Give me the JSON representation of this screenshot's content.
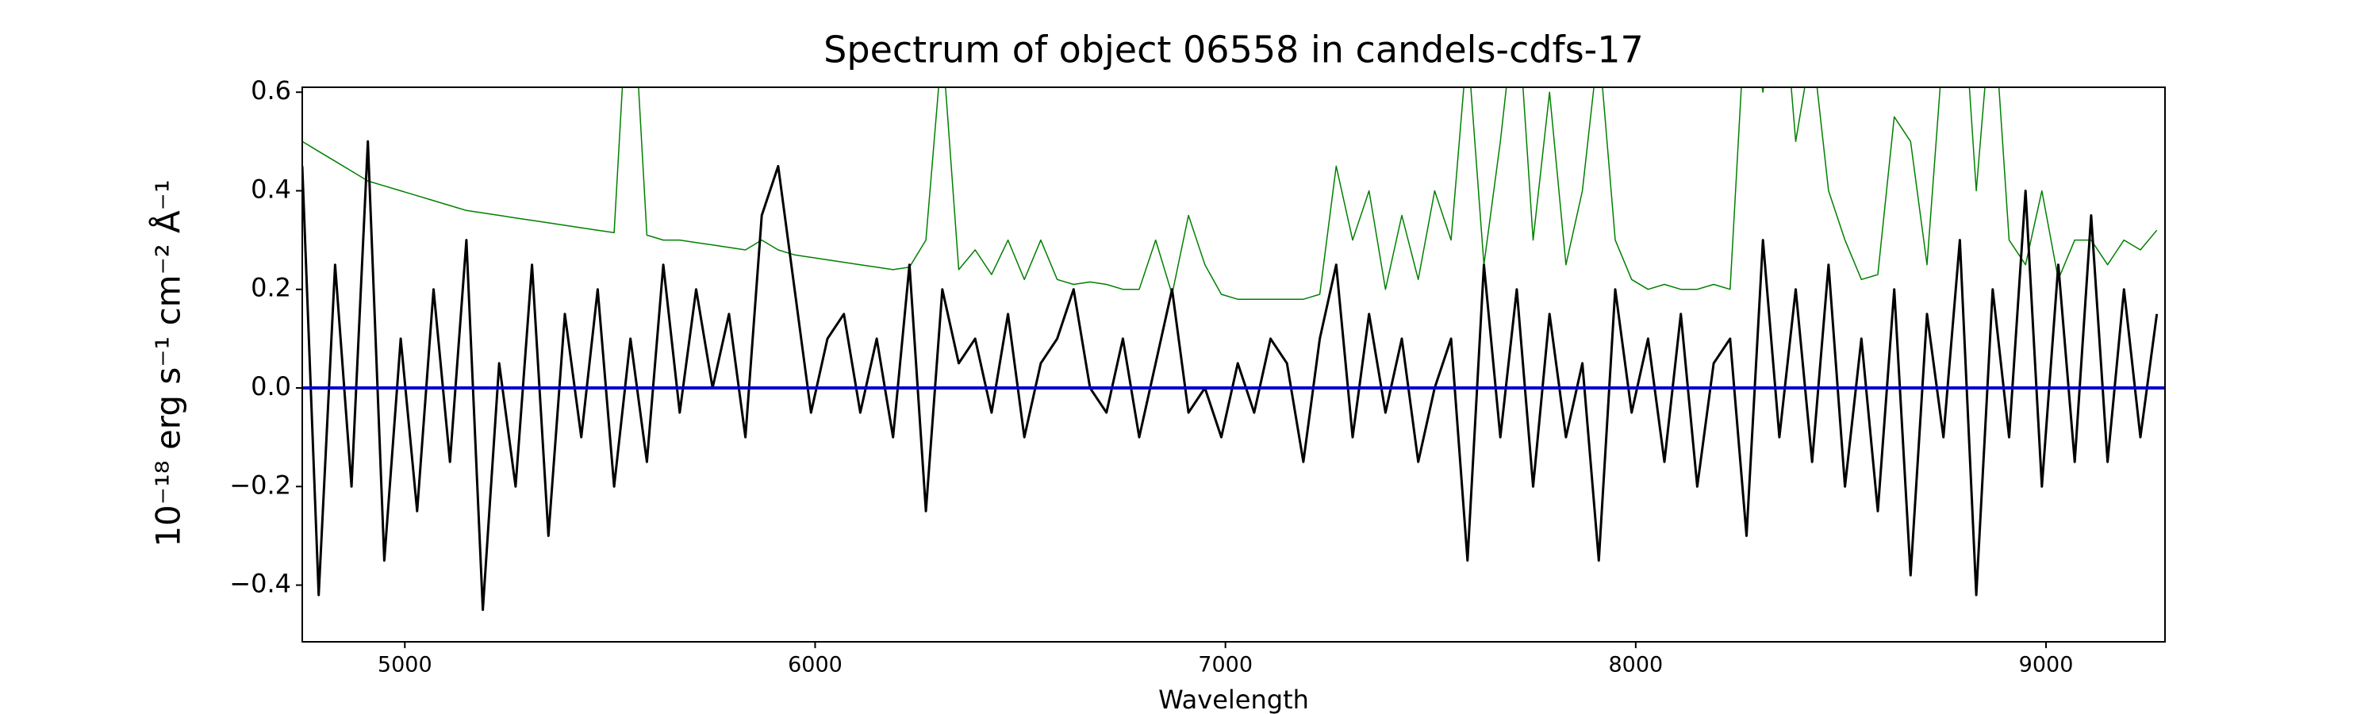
{
  "chart_data": {
    "type": "line",
    "title": "Spectrum of object 06558 in candels-cdfs-17",
    "x_label": "Wavelength",
    "y_label": "10⁻¹⁸ erg s⁻¹ cm⁻² Å⁻¹",
    "xlim": [
      4750,
      9290
    ],
    "ylim": [
      -0.515,
      0.61
    ],
    "xticks": [
      5000,
      6000,
      7000,
      8000,
      9000
    ],
    "yticks": [
      {
        "value": -0.4,
        "label": "−0.4"
      },
      {
        "value": -0.2,
        "label": "−0.2"
      },
      {
        "value": 0,
        "label": "0.0"
      },
      0.2,
      0.4,
      0.6
    ],
    "x": [
      4750,
      4790,
      4830,
      4870,
      4910,
      4950,
      4990,
      5030,
      5070,
      5110,
      5150,
      5190,
      5230,
      5270,
      5310,
      5350,
      5390,
      5430,
      5470,
      5510,
      5550,
      5590,
      5630,
      5670,
      5710,
      5750,
      5790,
      5830,
      5870,
      5910,
      5950,
      5990,
      6030,
      6070,
      6110,
      6150,
      6190,
      6230,
      6270,
      6310,
      6350,
      6390,
      6430,
      6470,
      6510,
      6550,
      6590,
      6630,
      6670,
      6710,
      6750,
      6790,
      6830,
      6870,
      6910,
      6950,
      6990,
      7030,
      7070,
      7110,
      7150,
      7190,
      7230,
      7270,
      7310,
      7350,
      7390,
      7430,
      7470,
      7510,
      7550,
      7590,
      7630,
      7670,
      7710,
      7750,
      7790,
      7830,
      7870,
      7910,
      7950,
      7990,
      8030,
      8070,
      8110,
      8150,
      8190,
      8230,
      8270,
      8310,
      8350,
      8390,
      8430,
      8470,
      8510,
      8550,
      8590,
      8630,
      8670,
      8710,
      8750,
      8790,
      8830,
      8870,
      8910,
      8950,
      8990,
      9030,
      9070,
      9110,
      9150,
      9190,
      9230,
      9270
    ],
    "series": [
      {
        "color": "#008000",
        "values": [
          0.5,
          0.48,
          0.46,
          0.44,
          0.42,
          0.41,
          0.4,
          0.39,
          0.38,
          0.37,
          0.36,
          0.355,
          0.35,
          0.345,
          0.34,
          0.335,
          0.33,
          0.325,
          0.32,
          0.315,
          0.9,
          0.31,
          0.3,
          0.3,
          0.295,
          0.29,
          0.285,
          0.28,
          0.3,
          0.28,
          0.27,
          0.265,
          0.26,
          0.255,
          0.25,
          0.245,
          0.24,
          0.245,
          0.3,
          0.7,
          0.24,
          0.28,
          0.23,
          0.3,
          0.22,
          0.3,
          0.22,
          0.21,
          0.215,
          0.21,
          0.2,
          0.2,
          0.3,
          0.19,
          0.35,
          0.25,
          0.19,
          0.18,
          0.18,
          0.18,
          0.18,
          0.18,
          0.19,
          0.45,
          0.3,
          0.4,
          0.2,
          0.35,
          0.22,
          0.4,
          0.3,
          0.7,
          0.25,
          0.5,
          0.8,
          0.3,
          0.6,
          0.25,
          0.4,
          0.7,
          0.3,
          0.22,
          0.2,
          0.21,
          0.2,
          0.2,
          0.21,
          0.2,
          0.8,
          0.6,
          0.9,
          0.5,
          0.7,
          0.4,
          0.3,
          0.22,
          0.23,
          0.55,
          0.5,
          0.25,
          0.7,
          0.9,
          0.4,
          0.8,
          0.3,
          0.25,
          0.4,
          0.22,
          0.3,
          0.3,
          0.25,
          0.3,
          0.28,
          0.32
        ]
      },
      {
        "color": "#000000",
        "values": [
          0.45,
          -0.42,
          0.25,
          -0.2,
          0.5,
          -0.35,
          0.1,
          -0.25,
          0.2,
          -0.15,
          0.3,
          -0.45,
          0.05,
          -0.2,
          0.25,
          -0.3,
          0.15,
          -0.1,
          0.2,
          -0.2,
          0.1,
          -0.15,
          0.25,
          -0.05,
          0.2,
          0.0,
          0.15,
          -0.1,
          0.35,
          0.45,
          0.2,
          -0.05,
          0.1,
          0.15,
          -0.05,
          0.1,
          -0.1,
          0.25,
          -0.25,
          0.2,
          0.05,
          0.1,
          -0.05,
          0.15,
          -0.1,
          0.05,
          0.1,
          0.2,
          0.0,
          -0.05,
          0.1,
          -0.1,
          0.05,
          0.2,
          -0.05,
          0.0,
          -0.1,
          0.05,
          -0.05,
          0.1,
          0.05,
          -0.15,
          0.1,
          0.25,
          -0.1,
          0.15,
          -0.05,
          0.1,
          -0.15,
          0.0,
          0.1,
          -0.35,
          0.25,
          -0.1,
          0.2,
          -0.2,
          0.15,
          -0.1,
          0.05,
          -0.35,
          0.2,
          -0.05,
          0.1,
          -0.15,
          0.15,
          -0.2,
          0.05,
          0.1,
          -0.3,
          0.3,
          -0.1,
          0.2,
          -0.15,
          0.25,
          -0.2,
          0.1,
          -0.25,
          0.2,
          -0.38,
          0.15,
          -0.1,
          0.3,
          -0.42,
          0.2,
          -0.1,
          0.4,
          -0.2,
          0.25,
          -0.15,
          0.35,
          -0.15,
          0.2,
          -0.1,
          0.15
        ]
      },
      {
        "color": "#0000cc",
        "x": [
          4750,
          9290
        ],
        "values": [
          0,
          0
        ]
      }
    ]
  }
}
